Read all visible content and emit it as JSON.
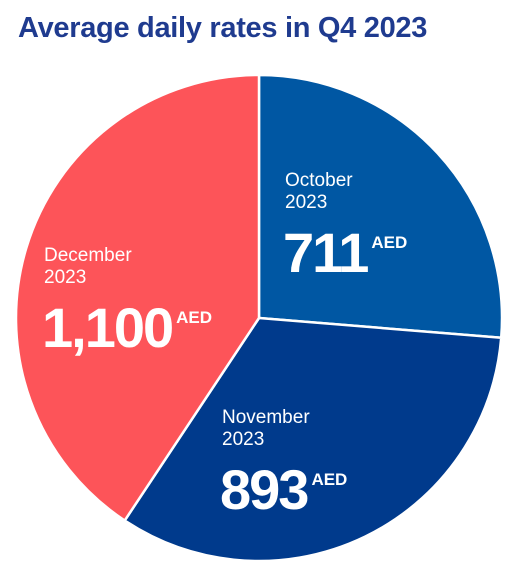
{
  "chart_data": {
    "type": "pie",
    "title": "Average daily rates in Q4 2023",
    "unit": "AED",
    "slices": [
      {
        "name": "October 2023",
        "label_lines": [
          "October",
          "2023"
        ],
        "value": 711,
        "value_label": "711",
        "color": "#0057a3"
      },
      {
        "name": "November 2023",
        "label_lines": [
          "November",
          "2023"
        ],
        "value": 893,
        "value_label": "893",
        "color": "#003a8c"
      },
      {
        "name": "December 2023",
        "label_lines": [
          "December",
          "2023"
        ],
        "value": 1100,
        "value_label": "1,100",
        "color": "#fd5459"
      }
    ]
  }
}
